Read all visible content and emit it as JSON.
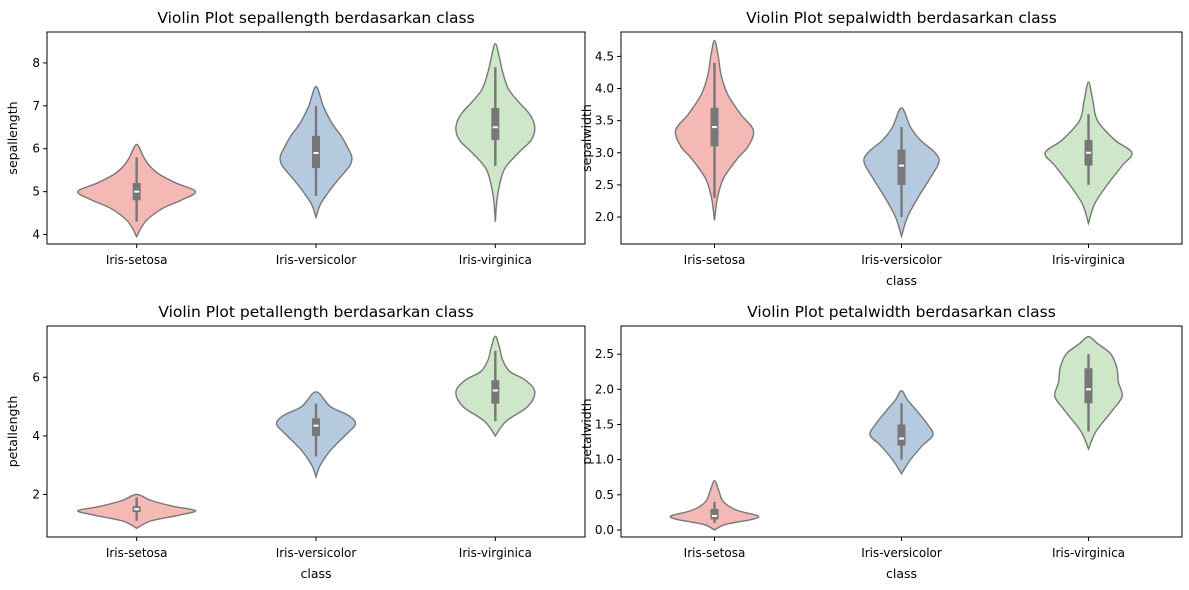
{
  "chart_data": [
    {
      "type": "violin",
      "title": "Violin Plot sepallength berdasarkan class",
      "xlabel": "",
      "ylabel": "sepallength",
      "categories": [
        "Iris-setosa",
        "Iris-versicolor",
        "Iris-virginica"
      ],
      "ylim": [
        3.78,
        8.72
      ],
      "yticks": [
        4,
        5,
        6,
        7,
        8
      ],
      "colors": [
        "#f4b9b5",
        "#b6cadf",
        "#cfe7c9"
      ],
      "violins": [
        {
          "min": 3.95,
          "max": 6.1,
          "q1": 4.8,
          "median": 5.0,
          "q3": 5.2,
          "wlo": 4.3,
          "whi": 5.8,
          "profile": [
            [
              3.95,
              0
            ],
            [
              4.3,
              0.12
            ],
            [
              4.6,
              0.35
            ],
            [
              4.8,
              0.62
            ],
            [
              5.0,
              0.82
            ],
            [
              5.2,
              0.55
            ],
            [
              5.4,
              0.32
            ],
            [
              5.6,
              0.18
            ],
            [
              5.8,
              0.1
            ],
            [
              6.1,
              0
            ]
          ]
        },
        {
          "min": 4.4,
          "max": 7.45,
          "q1": 5.55,
          "median": 5.9,
          "q3": 6.3,
          "wlo": 4.9,
          "whi": 7.0,
          "profile": [
            [
              4.4,
              0
            ],
            [
              4.7,
              0.06
            ],
            [
              5.0,
              0.18
            ],
            [
              5.3,
              0.32
            ],
            [
              5.6,
              0.47
            ],
            [
              5.8,
              0.5
            ],
            [
              6.0,
              0.45
            ],
            [
              6.3,
              0.35
            ],
            [
              6.6,
              0.22
            ],
            [
              7.0,
              0.1
            ],
            [
              7.45,
              0
            ]
          ]
        },
        {
          "min": 4.3,
          "max": 8.45,
          "q1": 6.2,
          "median": 6.5,
          "q3": 6.95,
          "wlo": 5.6,
          "whi": 7.9,
          "profile": [
            [
              4.3,
              0
            ],
            [
              4.9,
              0.03
            ],
            [
              5.5,
              0.12
            ],
            [
              5.9,
              0.32
            ],
            [
              6.2,
              0.5
            ],
            [
              6.5,
              0.55
            ],
            [
              6.8,
              0.48
            ],
            [
              7.1,
              0.32
            ],
            [
              7.4,
              0.18
            ],
            [
              7.8,
              0.1
            ],
            [
              8.1,
              0.06
            ],
            [
              8.45,
              0
            ]
          ]
        }
      ]
    },
    {
      "type": "violin",
      "title": "Violin Plot sepalwidth berdasarkan class",
      "xlabel": "class",
      "ylabel": "sepalwidth",
      "categories": [
        "Iris-setosa",
        "Iris-versicolor",
        "Iris-virginica"
      ],
      "ylim": [
        1.58,
        4.88
      ],
      "yticks": [
        2.0,
        2.5,
        3.0,
        3.5,
        4.0,
        4.5
      ],
      "colors": [
        "#f4b9b5",
        "#b6cadf",
        "#cfe7c9"
      ],
      "violins": [
        {
          "min": 1.95,
          "max": 4.75,
          "q1": 3.1,
          "median": 3.4,
          "q3": 3.7,
          "wlo": 2.3,
          "whi": 4.4,
          "profile": [
            [
              1.95,
              0
            ],
            [
              2.3,
              0.04
            ],
            [
              2.6,
              0.12
            ],
            [
              2.9,
              0.3
            ],
            [
              3.1,
              0.45
            ],
            [
              3.35,
              0.52
            ],
            [
              3.6,
              0.35
            ],
            [
              3.9,
              0.18
            ],
            [
              4.2,
              0.09
            ],
            [
              4.5,
              0.05
            ],
            [
              4.75,
              0
            ]
          ]
        },
        {
          "min": 1.7,
          "max": 3.7,
          "q1": 2.5,
          "median": 2.8,
          "q3": 3.05,
          "wlo": 2.0,
          "whi": 3.4,
          "profile": [
            [
              1.7,
              0
            ],
            [
              2.0,
              0.08
            ],
            [
              2.3,
              0.22
            ],
            [
              2.6,
              0.38
            ],
            [
              2.85,
              0.5
            ],
            [
              3.0,
              0.45
            ],
            [
              3.2,
              0.25
            ],
            [
              3.4,
              0.12
            ],
            [
              3.7,
              0
            ]
          ]
        },
        {
          "min": 1.9,
          "max": 4.1,
          "q1": 2.8,
          "median": 3.0,
          "q3": 3.2,
          "wlo": 2.5,
          "whi": 3.6,
          "profile": [
            [
              1.9,
              0
            ],
            [
              2.2,
              0.08
            ],
            [
              2.5,
              0.25
            ],
            [
              2.8,
              0.45
            ],
            [
              3.0,
              0.58
            ],
            [
              3.2,
              0.35
            ],
            [
              3.5,
              0.12
            ],
            [
              3.8,
              0.06
            ],
            [
              4.1,
              0
            ]
          ]
        }
      ]
    },
    {
      "type": "violin",
      "title": "Violin Plot petallength berdasarkan class",
      "xlabel": "class",
      "ylabel": "petallength",
      "categories": [
        "Iris-setosa",
        "Iris-versicolor",
        "Iris-virginica"
      ],
      "ylim": [
        0.55,
        7.75
      ],
      "yticks": [
        2,
        4,
        6
      ],
      "colors": [
        "#f4b9b5",
        "#b6cadf",
        "#cfe7c9"
      ],
      "violins": [
        {
          "min": 0.85,
          "max": 2.0,
          "q1": 1.4,
          "median": 1.5,
          "q3": 1.6,
          "wlo": 1.1,
          "whi": 1.9,
          "profile": [
            [
              0.85,
              0
            ],
            [
              1.1,
              0.2
            ],
            [
              1.3,
              0.6
            ],
            [
              1.45,
              0.82
            ],
            [
              1.6,
              0.5
            ],
            [
              1.8,
              0.2
            ],
            [
              2.0,
              0
            ]
          ]
        },
        {
          "min": 2.6,
          "max": 5.5,
          "q1": 4.0,
          "median": 4.35,
          "q3": 4.6,
          "wlo": 3.3,
          "whi": 5.1,
          "profile": [
            [
              2.6,
              0
            ],
            [
              3.0,
              0.06
            ],
            [
              3.5,
              0.2
            ],
            [
              4.0,
              0.4
            ],
            [
              4.4,
              0.55
            ],
            [
              4.7,
              0.45
            ],
            [
              5.0,
              0.2
            ],
            [
              5.5,
              0
            ]
          ]
        },
        {
          "min": 4.0,
          "max": 7.4,
          "q1": 5.1,
          "median": 5.55,
          "q3": 5.9,
          "wlo": 4.5,
          "whi": 6.9,
          "profile": [
            [
              4.0,
              0
            ],
            [
              4.5,
              0.15
            ],
            [
              5.0,
              0.45
            ],
            [
              5.5,
              0.55
            ],
            [
              5.9,
              0.42
            ],
            [
              6.2,
              0.2
            ],
            [
              6.6,
              0.1
            ],
            [
              7.0,
              0.06
            ],
            [
              7.4,
              0
            ]
          ]
        }
      ]
    },
    {
      "type": "violin",
      "title": "Violin Plot petalwidth berdasarkan class",
      "xlabel": "class",
      "ylabel": "petalwidth",
      "categories": [
        "Iris-setosa",
        "Iris-versicolor",
        "Iris-virginica"
      ],
      "ylim": [
        -0.1,
        2.9
      ],
      "yticks": [
        0.0,
        0.5,
        1.0,
        1.5,
        2.0,
        2.5
      ],
      "colors": [
        "#f4b9b5",
        "#b6cadf",
        "#cfe7c9"
      ],
      "violins": [
        {
          "min": 0.0,
          "max": 0.7,
          "q1": 0.15,
          "median": 0.2,
          "q3": 0.3,
          "wlo": 0.1,
          "whi": 0.4,
          "profile": [
            [
              0.0,
              0
            ],
            [
              0.08,
              0.15
            ],
            [
              0.15,
              0.5
            ],
            [
              0.2,
              0.58
            ],
            [
              0.28,
              0.3
            ],
            [
              0.4,
              0.12
            ],
            [
              0.55,
              0.06
            ],
            [
              0.7,
              0
            ]
          ]
        },
        {
          "min": 0.8,
          "max": 1.98,
          "q1": 1.2,
          "median": 1.3,
          "q3": 1.5,
          "wlo": 1.0,
          "whi": 1.8,
          "profile": [
            [
              0.8,
              0
            ],
            [
              1.0,
              0.12
            ],
            [
              1.2,
              0.28
            ],
            [
              1.35,
              0.42
            ],
            [
              1.5,
              0.35
            ],
            [
              1.7,
              0.2
            ],
            [
              1.85,
              0.08
            ],
            [
              1.98,
              0
            ]
          ]
        },
        {
          "min": 1.15,
          "max": 2.75,
          "q1": 1.8,
          "median": 2.0,
          "q3": 2.3,
          "wlo": 1.4,
          "whi": 2.5,
          "profile": [
            [
              1.15,
              0
            ],
            [
              1.4,
              0.1
            ],
            [
              1.7,
              0.32
            ],
            [
              1.9,
              0.45
            ],
            [
              2.1,
              0.4
            ],
            [
              2.3,
              0.38
            ],
            [
              2.5,
              0.3
            ],
            [
              2.65,
              0.12
            ],
            [
              2.75,
              0
            ]
          ]
        }
      ]
    }
  ]
}
